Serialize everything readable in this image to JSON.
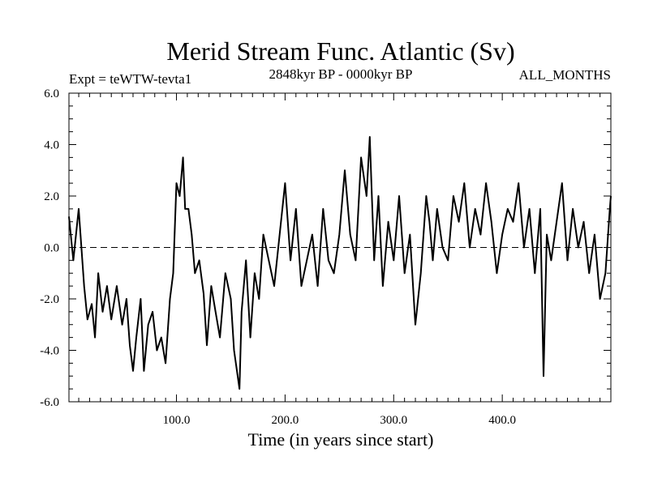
{
  "chart_data": {
    "type": "line",
    "title": "Merid Stream Func. Atlantic (Sv)",
    "subtitle_left": "Expt = teWTW-tevta1",
    "subtitle_center": "2848kyr BP - 0000kyr BP",
    "subtitle_right": "ALL_MONTHS",
    "xlabel": "Time (in years since start)",
    "ylabel": "",
    "xlim": [
      1,
      500
    ],
    "ylim": [
      -6,
      6
    ],
    "x_ticks": [
      100,
      200,
      300,
      400
    ],
    "x_tick_labels": [
      "100.0",
      "200.0",
      "300.0",
      "400.0"
    ],
    "y_ticks": [
      -6,
      -4,
      -2,
      0,
      2,
      4,
      6
    ],
    "y_tick_labels": [
      "-6.0",
      "-4.0",
      "-2.0",
      "0.0",
      "2.0",
      "4.0",
      "6.0"
    ],
    "reference_line": 0,
    "grid": false,
    "series": [
      {
        "name": "Merid Stream Func. Atlantic",
        "x": [
          1,
          5,
          10,
          15,
          18,
          22,
          25,
          28,
          32,
          36,
          40,
          45,
          50,
          54,
          57,
          60,
          63,
          67,
          70,
          74,
          78,
          82,
          86,
          90,
          94,
          97,
          100,
          103,
          106,
          108,
          111,
          114,
          117,
          121,
          125,
          128,
          132,
          136,
          140,
          145,
          150,
          153,
          158,
          160,
          164,
          168,
          172,
          176,
          180,
          185,
          190,
          195,
          200,
          205,
          210,
          215,
          220,
          225,
          230,
          235,
          240,
          245,
          250,
          255,
          260,
          265,
          270,
          275,
          278,
          282,
          286,
          290,
          295,
          300,
          305,
          310,
          315,
          320,
          325,
          330,
          333,
          336,
          340,
          345,
          350,
          355,
          360,
          365,
          370,
          375,
          380,
          385,
          390,
          395,
          400,
          405,
          410,
          415,
          420,
          425,
          430,
          435,
          438,
          441,
          445,
          450,
          455,
          460,
          465,
          470,
          475,
          480,
          485,
          490,
          495,
          499,
          500
        ],
        "values": [
          1.2,
          -0.5,
          1.5,
          -1.5,
          -2.8,
          -2.2,
          -3.5,
          -1.0,
          -2.5,
          -1.5,
          -2.8,
          -1.5,
          -3.0,
          -2.0,
          -3.8,
          -4.8,
          -3.5,
          -2.0,
          -4.8,
          -3.0,
          -2.5,
          -4.0,
          -3.5,
          -4.5,
          -2.0,
          -1.0,
          2.5,
          2.0,
          3.5,
          1.5,
          1.5,
          0.5,
          -1.0,
          -0.5,
          -1.8,
          -3.8,
          -1.5,
          -2.5,
          -3.5,
          -1.0,
          -2.0,
          -4.0,
          -5.5,
          -2.5,
          -0.5,
          -3.5,
          -1.0,
          -2.0,
          0.5,
          -0.5,
          -1.5,
          0.5,
          2.5,
          -0.5,
          1.5,
          -1.5,
          -0.5,
          0.5,
          -1.5,
          1.5,
          -0.5,
          -1.0,
          0.5,
          3.0,
          0.5,
          -0.5,
          3.5,
          2.0,
          4.3,
          -0.5,
          2.0,
          -1.5,
          1.0,
          -0.5,
          2.0,
          -1.0,
          0.5,
          -3.0,
          -1.0,
          2.0,
          1.0,
          -0.5,
          1.5,
          0.0,
          -0.5,
          2.0,
          1.0,
          2.5,
          0.0,
          1.5,
          0.5,
          2.5,
          1.0,
          -1.0,
          0.5,
          1.5,
          1.0,
          2.5,
          0.0,
          1.5,
          -1.0,
          1.5,
          -5.0,
          0.5,
          -0.5,
          1.0,
          2.5,
          -0.5,
          1.5,
          0.0,
          1.0,
          -1.0,
          0.5,
          -2.0,
          -1.0,
          1.5,
          2.0
        ]
      }
    ]
  }
}
